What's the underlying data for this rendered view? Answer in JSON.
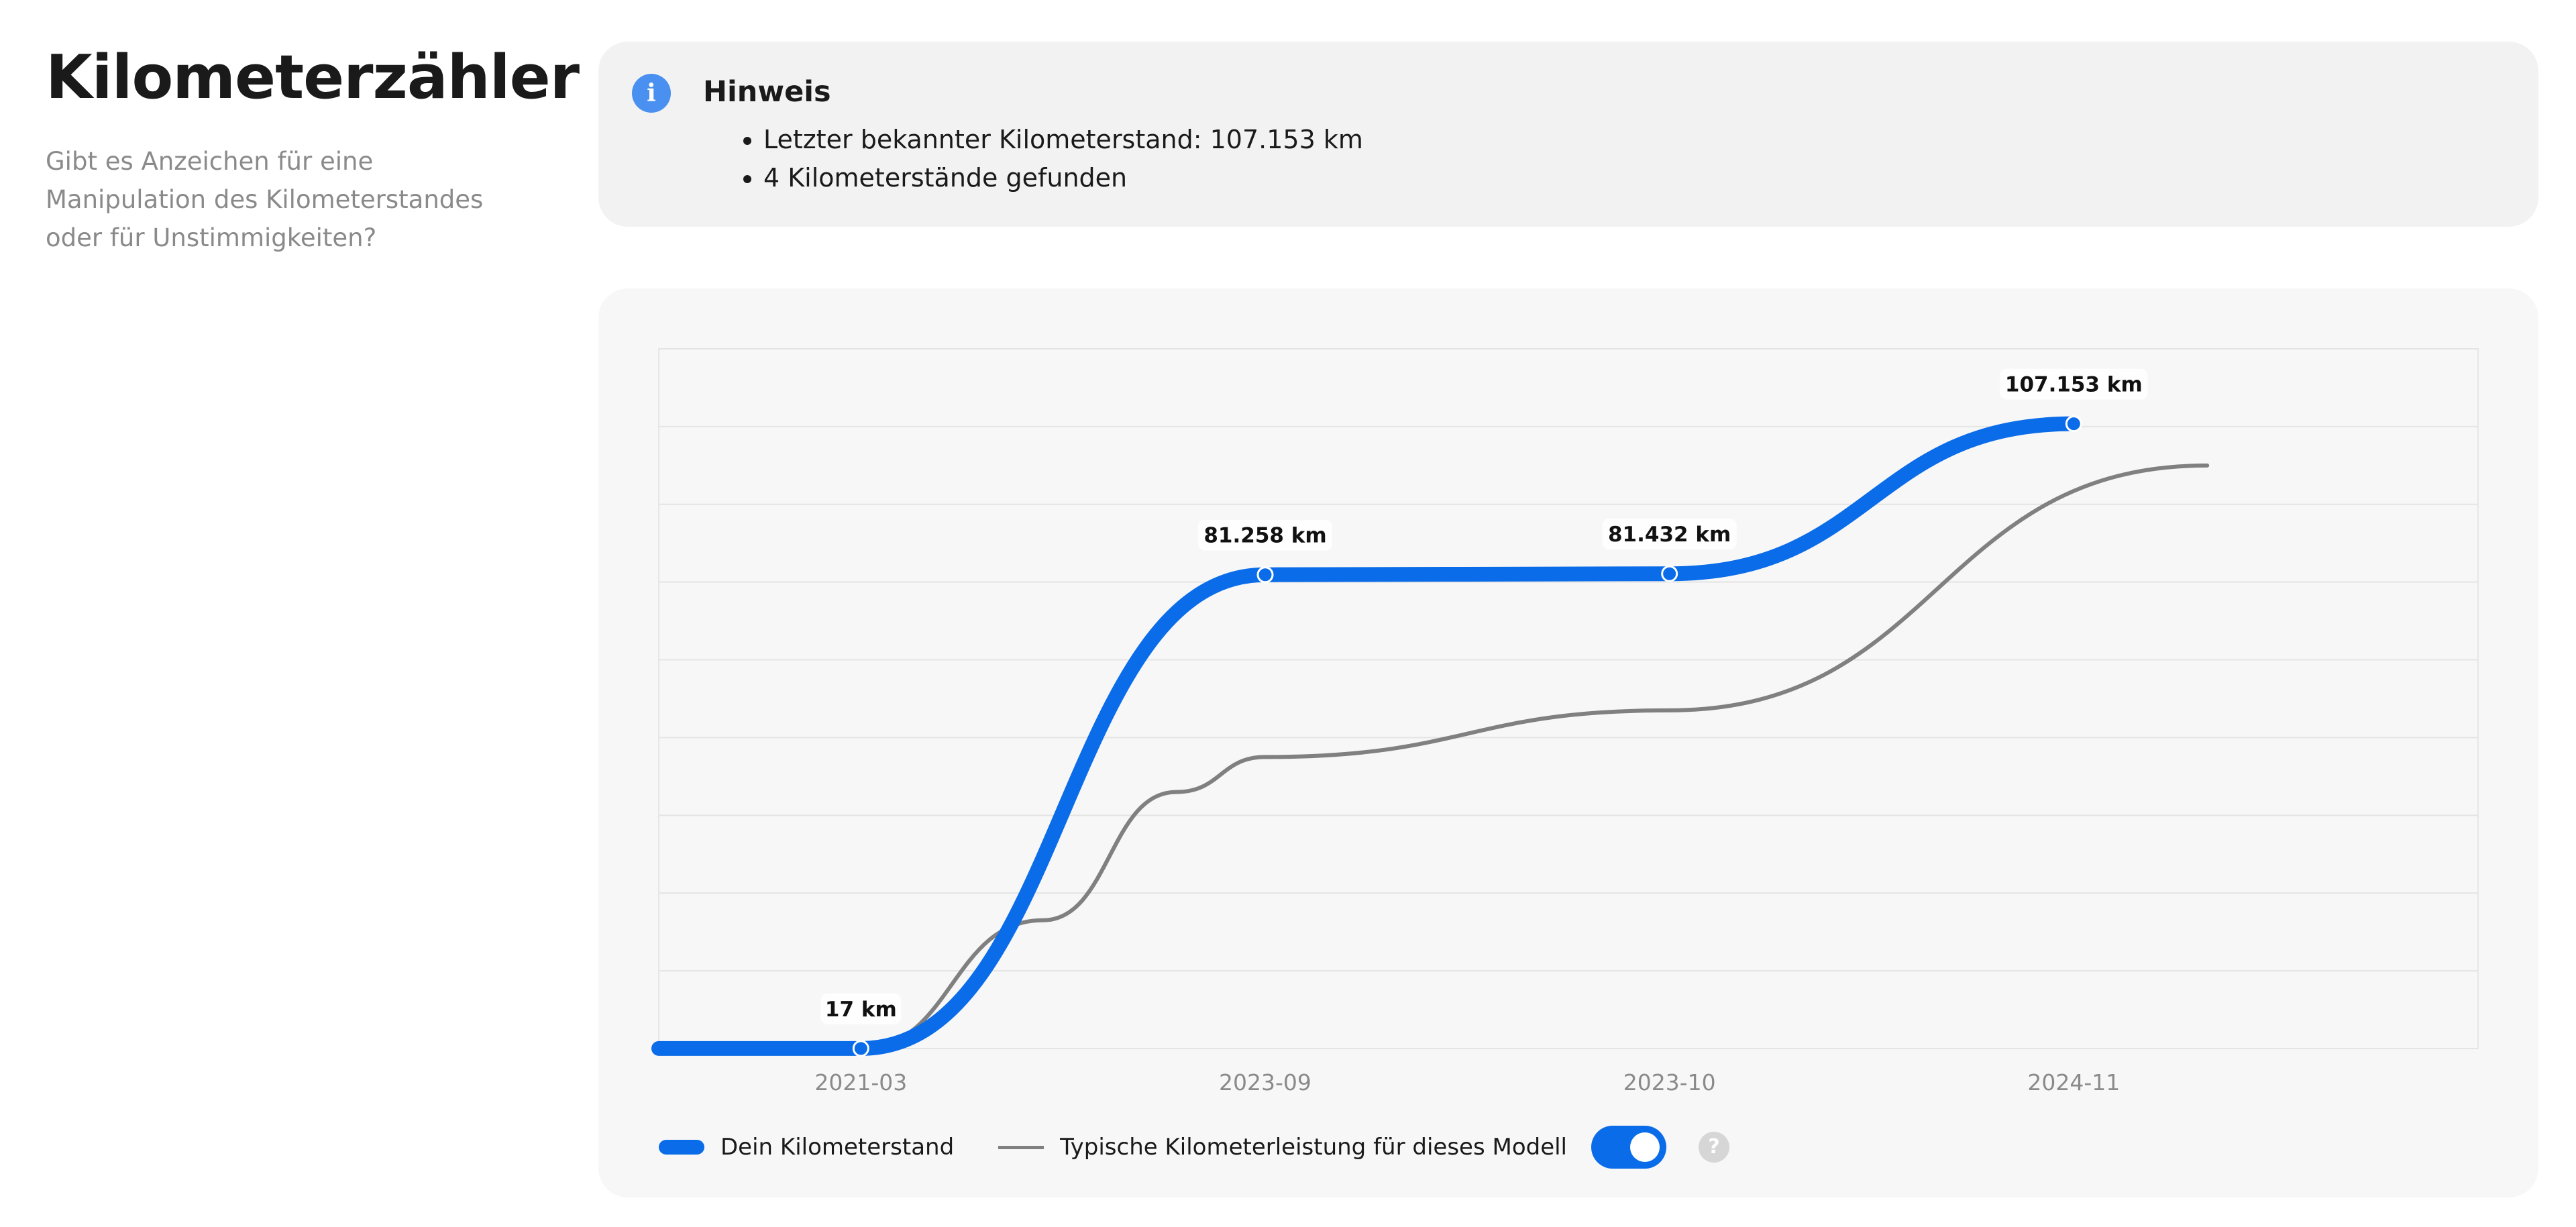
{
  "header": {
    "title": "Kilometerzähler",
    "subtitle": "Gibt es Anzeichen für eine Manipulation des Kilometerstandes oder für Unstimmigkeiten?"
  },
  "notice": {
    "icon": "info-icon",
    "title": "Hinweis",
    "items": [
      "Letzter bekannter Kilometerstand: 107.153 km",
      "4 Kilometerstände gefunden"
    ]
  },
  "legend": {
    "series_1": "Dein Kilometerstand",
    "series_2": "Typische Kilometerleistung für dieses Modell",
    "toggle_on": true,
    "help_icon": "question-icon",
    "help_symbol": "?"
  },
  "colors": {
    "accent": "#0a6ce8",
    "typical": "#808080",
    "info": "#4a90f0"
  },
  "chart_data": {
    "type": "line",
    "categories": [
      "2021-03",
      "2023-09",
      "2023-10",
      "2024-11"
    ],
    "ylim": [
      0,
      120000
    ],
    "grid": true,
    "legend_position": "bottom-left",
    "series": [
      {
        "name": "Dein Kilometerstand",
        "values": [
          17,
          81258,
          81432,
          107153
        ],
        "labels": [
          "17 km",
          "81.258 km",
          "81.432 km",
          "107.153 km"
        ]
      },
      {
        "name": "Typische Kilometerleistung für dieses Modell",
        "values": [
          17,
          50000,
          58000,
          88000
        ]
      }
    ]
  }
}
